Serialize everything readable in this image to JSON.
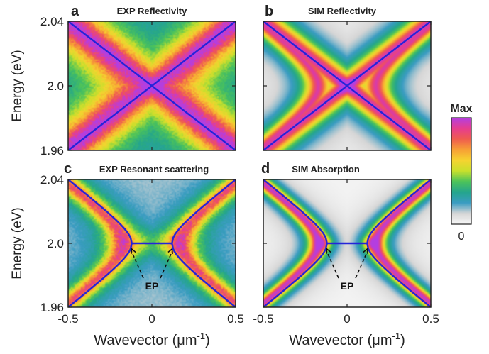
{
  "figure": {
    "xlabel_main": "Wavevector (μm",
    "xlabel_sup": "-1",
    "xlabel_close": ")",
    "ylabel": "Energy (eV)",
    "colorbar": {
      "max_label": "Max",
      "min_label": "0"
    },
    "ep_label": "EP"
  },
  "colors": {
    "colormap": [
      "#f7f7f7",
      "#d6d6d6",
      "#3a9cc2",
      "#24a58d",
      "#4cc35a",
      "#c8e02c",
      "#f6d330",
      "#f7a035",
      "#ef5b4f",
      "#e63d8f",
      "#b43ee0"
    ],
    "line": "#2424d9"
  },
  "chart_data": [
    {
      "panel": "a",
      "title": "EXP Reflectivity",
      "type": "heatmap",
      "xlim": [
        -0.5,
        0.5
      ],
      "ylim": [
        1.96,
        2.04
      ],
      "xticks": [
        "-0.5",
        "0",
        "0.5"
      ],
      "yticks": [
        "1.96",
        "2.0",
        "2.04"
      ],
      "overlay": "crossing",
      "lines": [
        {
          "x": [
            -0.5,
            0.5
          ],
          "y": [
            2.04,
            1.96
          ]
        },
        {
          "x": [
            -0.5,
            0.5
          ],
          "y": [
            1.96,
            2.04
          ]
        }
      ],
      "crossing_point": {
        "x": 0,
        "y": 2.0
      }
    },
    {
      "panel": "b",
      "title": "SIM Reflectivity",
      "type": "heatmap",
      "xlim": [
        -0.5,
        0.5
      ],
      "ylim": [
        1.96,
        2.04
      ],
      "xticks": [
        "-0.5",
        "0",
        "0.5"
      ],
      "yticks": [
        "1.96",
        "2.0",
        "2.04"
      ],
      "overlay": "crossing",
      "lines": [
        {
          "x": [
            -0.5,
            0.5
          ],
          "y": [
            2.04,
            1.96
          ]
        },
        {
          "x": [
            -0.5,
            0.5
          ],
          "y": [
            1.96,
            2.04
          ]
        }
      ],
      "crossing_point": {
        "x": 0,
        "y": 2.0
      }
    },
    {
      "panel": "c",
      "title": "EXP Resonant scattering",
      "type": "heatmap",
      "xlim": [
        -0.5,
        0.5
      ],
      "ylim": [
        1.96,
        2.04
      ],
      "xticks": [
        "-0.5",
        "0",
        "0.5"
      ],
      "yticks": [
        "1.96",
        "2.0",
        "2.04"
      ],
      "overlay": "exceptional-points",
      "exceptional_points": [
        {
          "x": -0.12,
          "y": 2.0
        },
        {
          "x": 0.12,
          "y": 2.0
        }
      ],
      "ep_label": "EP"
    },
    {
      "panel": "d",
      "title": "SIM Absorption",
      "type": "heatmap",
      "xlim": [
        -0.5,
        0.5
      ],
      "ylim": [
        1.96,
        2.04
      ],
      "xticks": [
        "-0.5",
        "0",
        "0.5"
      ],
      "yticks": [
        "1.96",
        "2.0",
        "2.04"
      ],
      "overlay": "exceptional-points",
      "exceptional_points": [
        {
          "x": -0.12,
          "y": 2.0
        },
        {
          "x": 0.12,
          "y": 2.0
        }
      ],
      "ep_label": "EP"
    }
  ]
}
